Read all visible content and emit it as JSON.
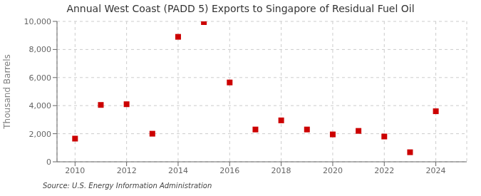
{
  "chart_data": {
    "type": "scatter",
    "title": "Annual West Coast (PADD 5) Exports to Singapore of Residual Fuel Oil",
    "ylabel": "Thousand Barrels",
    "annotations": [
      "Source: U.S. Energy Information Administration"
    ],
    "x": [
      2010,
      2011,
      2012,
      2013,
      2014,
      2015,
      2016,
      2017,
      2018,
      2019,
      2020,
      2021,
      2022,
      2023,
      2024
    ],
    "values": [
      1650,
      4050,
      4100,
      2000,
      8900,
      9950,
      5650,
      2300,
      2950,
      2300,
      1950,
      2200,
      1800,
      680,
      3600
    ],
    "color": "#cc0000",
    "marker": "square",
    "xlim": [
      2009.3,
      2025.2
    ],
    "xticks": [
      2010,
      2012,
      2014,
      2016,
      2018,
      2020,
      2022,
      2024
    ],
    "ylim": [
      0,
      10000
    ],
    "yticks": [
      0,
      {
        "value": 2000,
        "label": "2,000"
      },
      {
        "value": 4000,
        "label": "4,000"
      },
      {
        "value": 6000,
        "label": "6,000"
      },
      {
        "value": 8000,
        "label": "8,000"
      },
      {
        "value": 10000,
        "label": "10,000"
      }
    ],
    "grid": true
  }
}
